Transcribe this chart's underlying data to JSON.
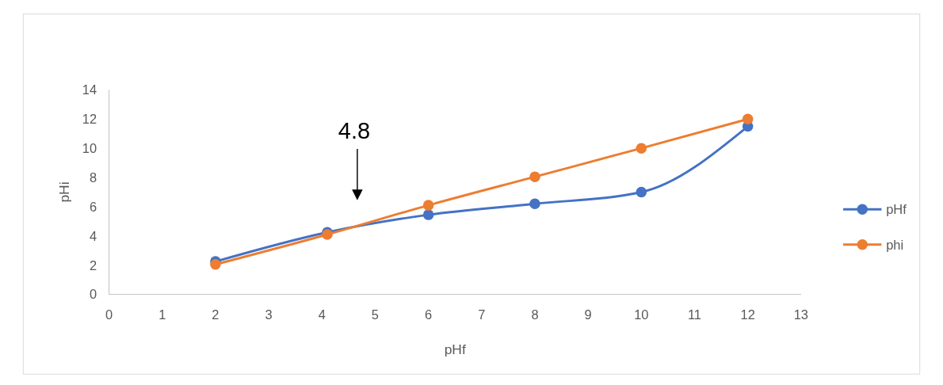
{
  "chart_data": {
    "type": "line",
    "xlabel": "pHf",
    "ylabel": "pHi",
    "xlim": [
      0,
      13
    ],
    "xticks": [
      0,
      1,
      2,
      3,
      4,
      5,
      6,
      7,
      8,
      9,
      10,
      11,
      12,
      13
    ],
    "ylim": [
      0,
      14
    ],
    "yticks": [
      0,
      2,
      4,
      6,
      8,
      10,
      12,
      14
    ],
    "grid": false,
    "legend": "right",
    "marker": "circle",
    "line_style": "solid",
    "series": [
      {
        "name": "pHf",
        "color": "#4472c4",
        "x": [
          2,
          4.1,
          6,
          8,
          10,
          12
        ],
        "values": [
          2.25,
          4.25,
          5.45,
          6.2,
          7,
          11.5
        ]
      },
      {
        "name": "phi",
        "color": "#ed7d31",
        "x": [
          2,
          4.1,
          6,
          8,
          10,
          12
        ],
        "values": [
          2.05,
          4.1,
          6.1,
          8.05,
          10,
          12
        ]
      }
    ],
    "annotations": [
      "4.8"
    ]
  }
}
